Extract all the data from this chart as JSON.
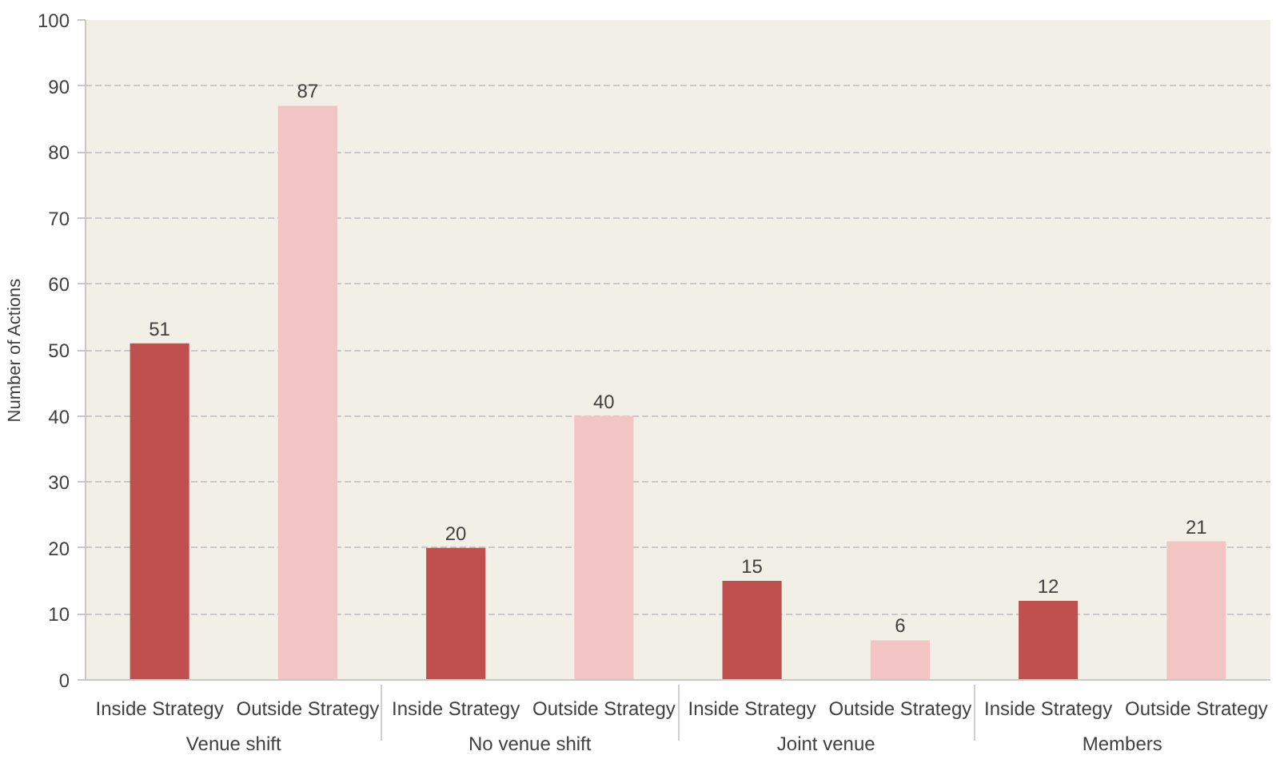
{
  "chart_data": {
    "type": "bar",
    "ylabel": "Number of Actions",
    "categories": [
      "Venue shift",
      "No venue shift",
      "Joint venue",
      "Members"
    ],
    "series": [
      {
        "name": "Inside Strategy",
        "color": "#c0504d",
        "values": [
          51,
          20,
          15,
          12
        ]
      },
      {
        "name": "Outside Strategy",
        "color": "#f2c4c4",
        "values": [
          87,
          40,
          6,
          21
        ]
      }
    ],
    "ylim": [
      0,
      100
    ],
    "yticks": [
      0,
      10,
      20,
      30,
      40,
      50,
      60,
      70,
      80,
      90,
      100
    ],
    "grid": "y",
    "data_labels": true
  }
}
